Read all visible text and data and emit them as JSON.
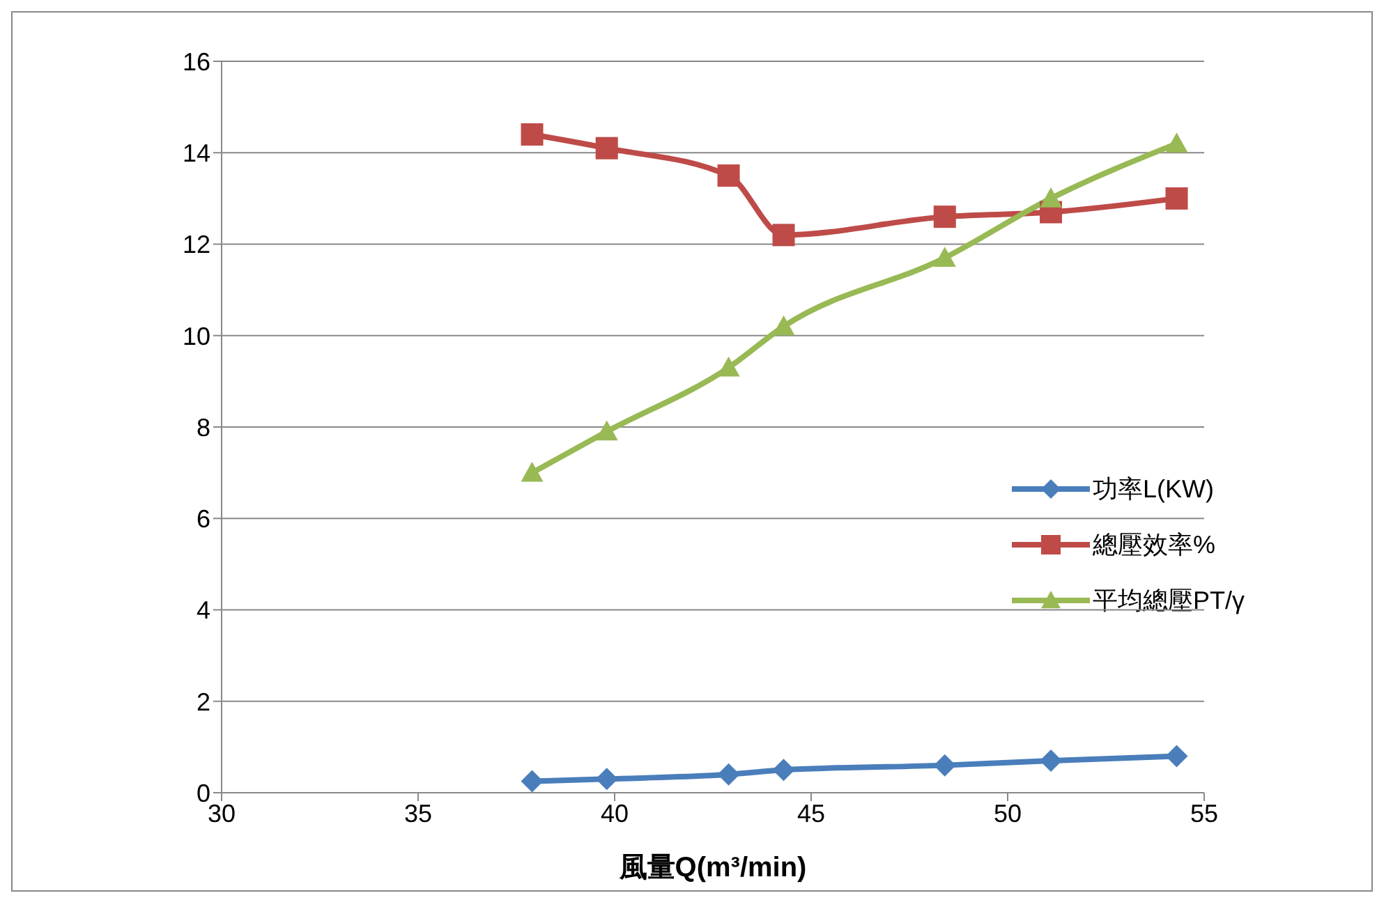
{
  "chart_data": {
    "type": "line",
    "xlabel": "風量Q(m³/min)",
    "x": [
      37.9,
      39.8,
      42.9,
      44.3,
      48.4,
      51.1,
      54.3
    ],
    "series": [
      {
        "name": "功率L(KW)",
        "color": "#4a7ebb",
        "marker": "diamond",
        "values": [
          0.25,
          0.3,
          0.4,
          0.5,
          0.6,
          0.7,
          0.8
        ]
      },
      {
        "name": "總壓效率%",
        "color": "#be4b48",
        "marker": "square",
        "values": [
          14.4,
          14.1,
          13.5,
          12.2,
          12.6,
          12.7,
          13.0
        ]
      },
      {
        "name": "平均總壓PT/γ",
        "color": "#98b954",
        "marker": "triangle",
        "values": [
          7.0,
          7.9,
          9.3,
          10.2,
          11.7,
          13.0,
          14.2
        ]
      }
    ],
    "xlim": [
      30,
      55
    ],
    "xticks": [
      30,
      35,
      40,
      45,
      50,
      55
    ],
    "ylim": [
      0,
      16
    ],
    "yticks": [
      0,
      2,
      4,
      6,
      8,
      10,
      12,
      14,
      16
    ],
    "grid": "y",
    "legend": "right",
    "line_style": "solid"
  }
}
